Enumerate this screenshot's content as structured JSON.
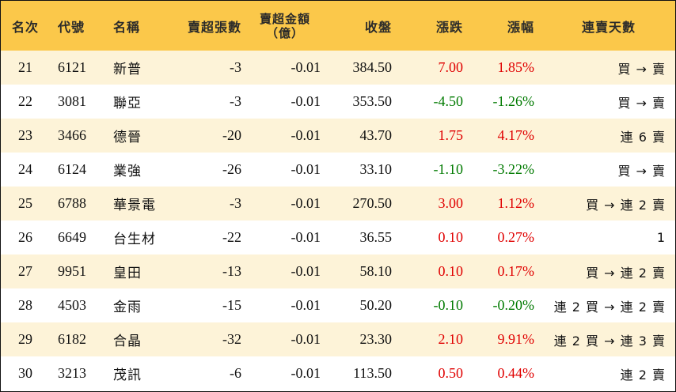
{
  "headers": {
    "rank": "名次",
    "code": "代號",
    "name": "名稱",
    "net_sell_lots": "賣超張數",
    "net_sell_amount_line1": "賣超金額",
    "net_sell_amount_line2": "（億）",
    "close": "收盤",
    "change": "漲跌",
    "change_pct": "漲幅",
    "consecutive_days": "連賣天數"
  },
  "rows": [
    {
      "rank": "21",
      "code": "6121",
      "name": "新普",
      "lots": "-3",
      "amount": "-0.01",
      "close": "384.50",
      "change": "7.00",
      "pct": "1.85%",
      "days": "買 → 賣",
      "dir": "up"
    },
    {
      "rank": "22",
      "code": "3081",
      "name": "聯亞",
      "lots": "-3",
      "amount": "-0.01",
      "close": "353.50",
      "change": "-4.50",
      "pct": "-1.26%",
      "days": "買 → 賣",
      "dir": "down"
    },
    {
      "rank": "23",
      "code": "3466",
      "name": "德晉",
      "lots": "-20",
      "amount": "-0.01",
      "close": "43.70",
      "change": "1.75",
      "pct": "4.17%",
      "days": "連 6 賣",
      "dir": "up"
    },
    {
      "rank": "24",
      "code": "6124",
      "name": "業強",
      "lots": "-26",
      "amount": "-0.01",
      "close": "33.10",
      "change": "-1.10",
      "pct": "-3.22%",
      "days": "買 → 賣",
      "dir": "down"
    },
    {
      "rank": "25",
      "code": "6788",
      "name": "華景電",
      "lots": "-3",
      "amount": "-0.01",
      "close": "270.50",
      "change": "3.00",
      "pct": "1.12%",
      "days": "買 → 連 2 賣",
      "dir": "up"
    },
    {
      "rank": "26",
      "code": "6649",
      "name": "台生材",
      "lots": "-22",
      "amount": "-0.01",
      "close": "36.55",
      "change": "0.10",
      "pct": "0.27%",
      "days": "1",
      "dir": "up"
    },
    {
      "rank": "27",
      "code": "9951",
      "name": "皇田",
      "lots": "-13",
      "amount": "-0.01",
      "close": "58.10",
      "change": "0.10",
      "pct": "0.17%",
      "days": "買 → 連 2 賣",
      "dir": "up"
    },
    {
      "rank": "28",
      "code": "4503",
      "name": "金雨",
      "lots": "-15",
      "amount": "-0.01",
      "close": "50.20",
      "change": "-0.10",
      "pct": "-0.20%",
      "days": "連 2 買 → 連 2 賣",
      "dir": "down"
    },
    {
      "rank": "29",
      "code": "6182",
      "name": "合晶",
      "lots": "-32",
      "amount": "-0.01",
      "close": "23.30",
      "change": "2.10",
      "pct": "9.91%",
      "days": "連 2 買 → 連 3 賣",
      "dir": "up"
    },
    {
      "rank": "30",
      "code": "3213",
      "name": "茂訊",
      "lots": "-6",
      "amount": "-0.01",
      "close": "113.50",
      "change": "0.50",
      "pct": "0.44%",
      "days": "連 2 賣",
      "dir": "up"
    }
  ],
  "colors": {
    "header_bg": "#fbc84a",
    "odd_row_bg": "#fdf3d8",
    "up": "#e00000",
    "down": "#007a00"
  }
}
